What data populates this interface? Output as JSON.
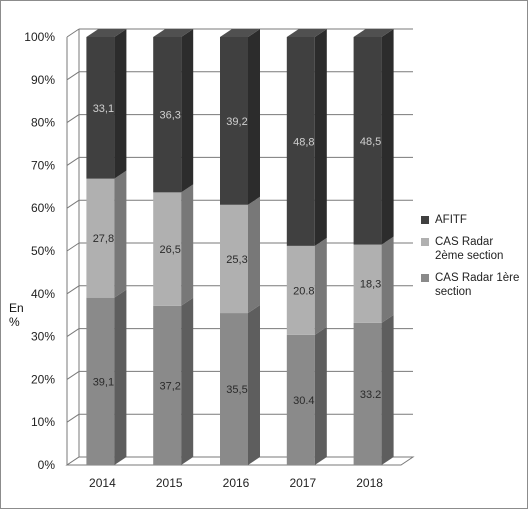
{
  "chart_data": {
    "type": "bar",
    "stacked": true,
    "percent_stacked": true,
    "three_d": true,
    "categories": [
      "2014",
      "2015",
      "2016",
      "2017",
      "2018"
    ],
    "series": [
      {
        "name": "CAS Radar 1ère section",
        "values": [
          39.1,
          37.2,
          35.5,
          30.4,
          33.2
        ],
        "labels": [
          "39,1",
          "37,2",
          "35,5",
          "30.4",
          "33.2"
        ],
        "color": "#8a8a8a"
      },
      {
        "name": "CAS Radar 2ème section",
        "values": [
          27.8,
          26.5,
          25.3,
          20.8,
          18.3
        ],
        "labels": [
          "27,8",
          "26,5",
          "25,3",
          "20.8",
          "18,3"
        ],
        "color": "#b0b0b0"
      },
      {
        "name": "AFITF",
        "values": [
          33.1,
          36.3,
          39.2,
          48.8,
          48.5
        ],
        "labels": [
          "33,1",
          "36,3",
          "39,2",
          "48,8",
          "48,5"
        ],
        "color": "#404040"
      }
    ],
    "legend_order": [
      "AFITF",
      "CAS Radar 2ème section",
      "CAS Radar 1ère section"
    ],
    "ylabel": "En %",
    "ylim": [
      0,
      100
    ],
    "yticks": [
      "0%",
      "10%",
      "20%",
      "30%",
      "40%",
      "50%",
      "60%",
      "70%",
      "80%",
      "90%",
      "100%"
    ],
    "grid": true,
    "legend_position": "right"
  },
  "yaxis_label_line1": "En",
  "yaxis_label_line2": "%"
}
